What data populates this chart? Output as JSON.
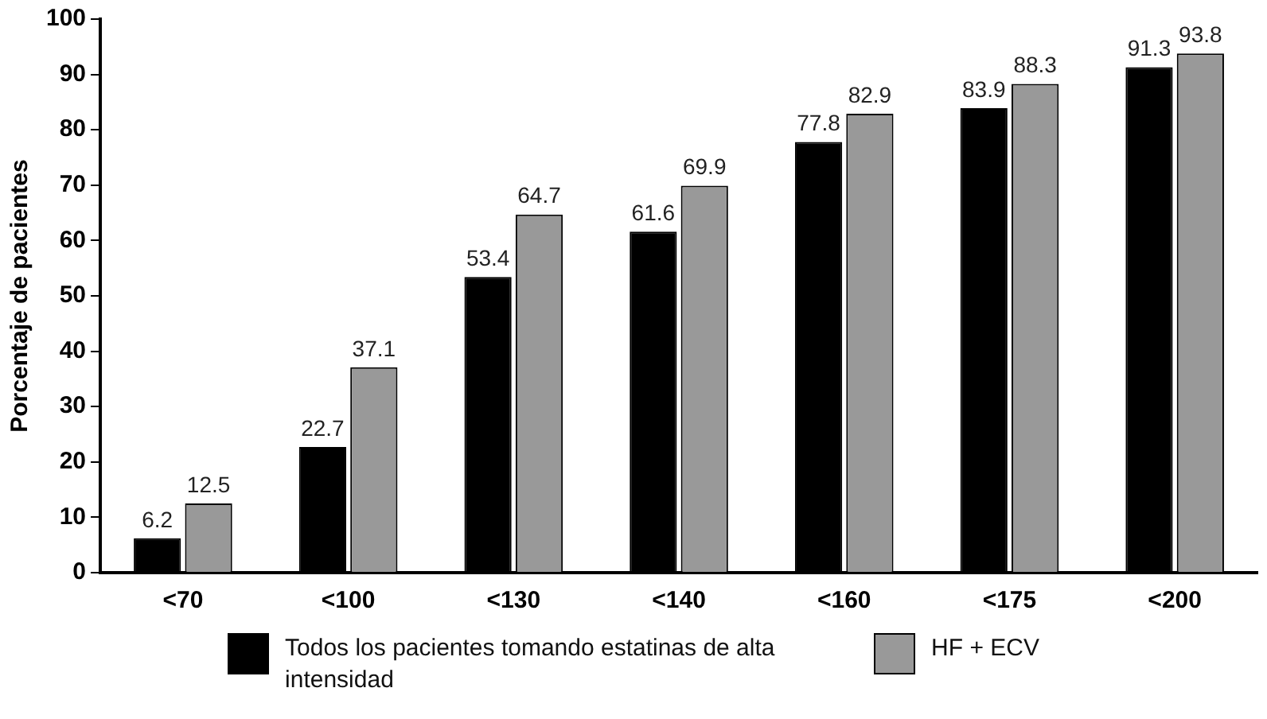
{
  "chart_data": {
    "type": "bar",
    "ylabel": "Porcentaje de pacientes",
    "categories": [
      "<70",
      "<100",
      "<130",
      "<140",
      "<160",
      "<175",
      "<200"
    ],
    "series": [
      {
        "name": "Todos los pacientes tomando estatinas de alta intensidad",
        "color": "#000000",
        "values": [
          6.2,
          22.7,
          53.4,
          61.6,
          77.8,
          83.9,
          91.3
        ]
      },
      {
        "name": "HF + ECV",
        "color": "#999999",
        "values": [
          12.5,
          37.1,
          64.7,
          69.9,
          82.9,
          88.3,
          93.8
        ]
      }
    ],
    "ylim": [
      0,
      100
    ],
    "yticks": [
      0,
      10,
      20,
      30,
      40,
      50,
      60,
      70,
      80,
      90,
      100
    ],
    "grid": false,
    "legend": "bottom",
    "data_labels": true
  }
}
